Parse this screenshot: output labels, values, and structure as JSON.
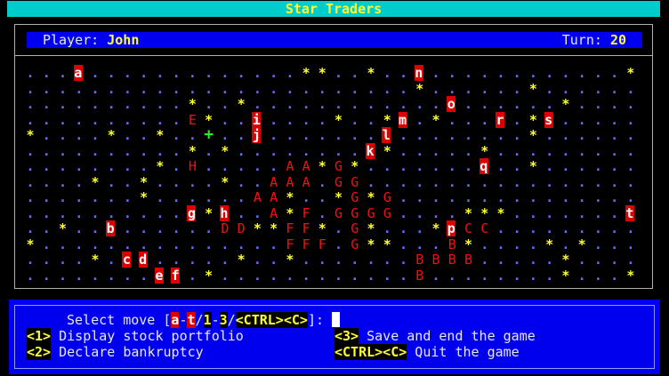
{
  "title": "Star Traders",
  "status": {
    "player_label": "Player:",
    "player_name": "John",
    "turn_label": "Turn:",
    "turn_value": "20"
  },
  "colors": {
    "title_bg": "#00cccc",
    "panel_bg": "#0000ee",
    "highlight": "#ffff33",
    "company": "#ee1111",
    "move_bg": "#dd0000",
    "space_dot": "#6a6aff",
    "star": "#ffff33",
    "plus": "#22ee22"
  },
  "map": {
    "legend": {
      ".": "empty-space",
      "*": "star",
      "+": "trading-post",
      "A-Z": "company",
      "a-t": "available-move"
    },
    "rows": [
      "...a.............**..*..n............*",
      "........................*......*......",
      "..........*..*............o......*....",
      "..........E*..i....*..*m.*...r.*s.....",
      "*....*..*..+..j.......l........*......",
      "..........*.*........k*.....*.........",
      "........*.H.....AA*G*.......q..*......",
      "....*..*....*..AAA.GG.................",
      ".......*......AA*..*G*G...............",
      "..........g*h..A*F.GGGG....***.......t",
      "..*..b......DD**FF*.G*...*pCC.........",
      "*...............FFF.G**...B*....*.*...",
      "....*.cd.....*..*.......BBBB.....*....",
      "........ef.*............B........*...*"
    ]
  },
  "prompt": {
    "text": "Select move [",
    "move_from": "a",
    "dash1": "-",
    "move_to": "t",
    "slash1": "/",
    "opt_from": "1",
    "dash2": "-",
    "opt_to": "3",
    "slash2": "/",
    "ctrl_key": "<CTRL><C>",
    "close": "]: "
  },
  "options": [
    {
      "key": "<1>",
      "label": " Display stock portfolio"
    },
    {
      "key": "<2>",
      "label": " Declare bankruptcy"
    },
    {
      "key": "<3>",
      "label": " Save and end the game"
    },
    {
      "key": "<CTRL><C>",
      "label": " Quit the game"
    }
  ]
}
